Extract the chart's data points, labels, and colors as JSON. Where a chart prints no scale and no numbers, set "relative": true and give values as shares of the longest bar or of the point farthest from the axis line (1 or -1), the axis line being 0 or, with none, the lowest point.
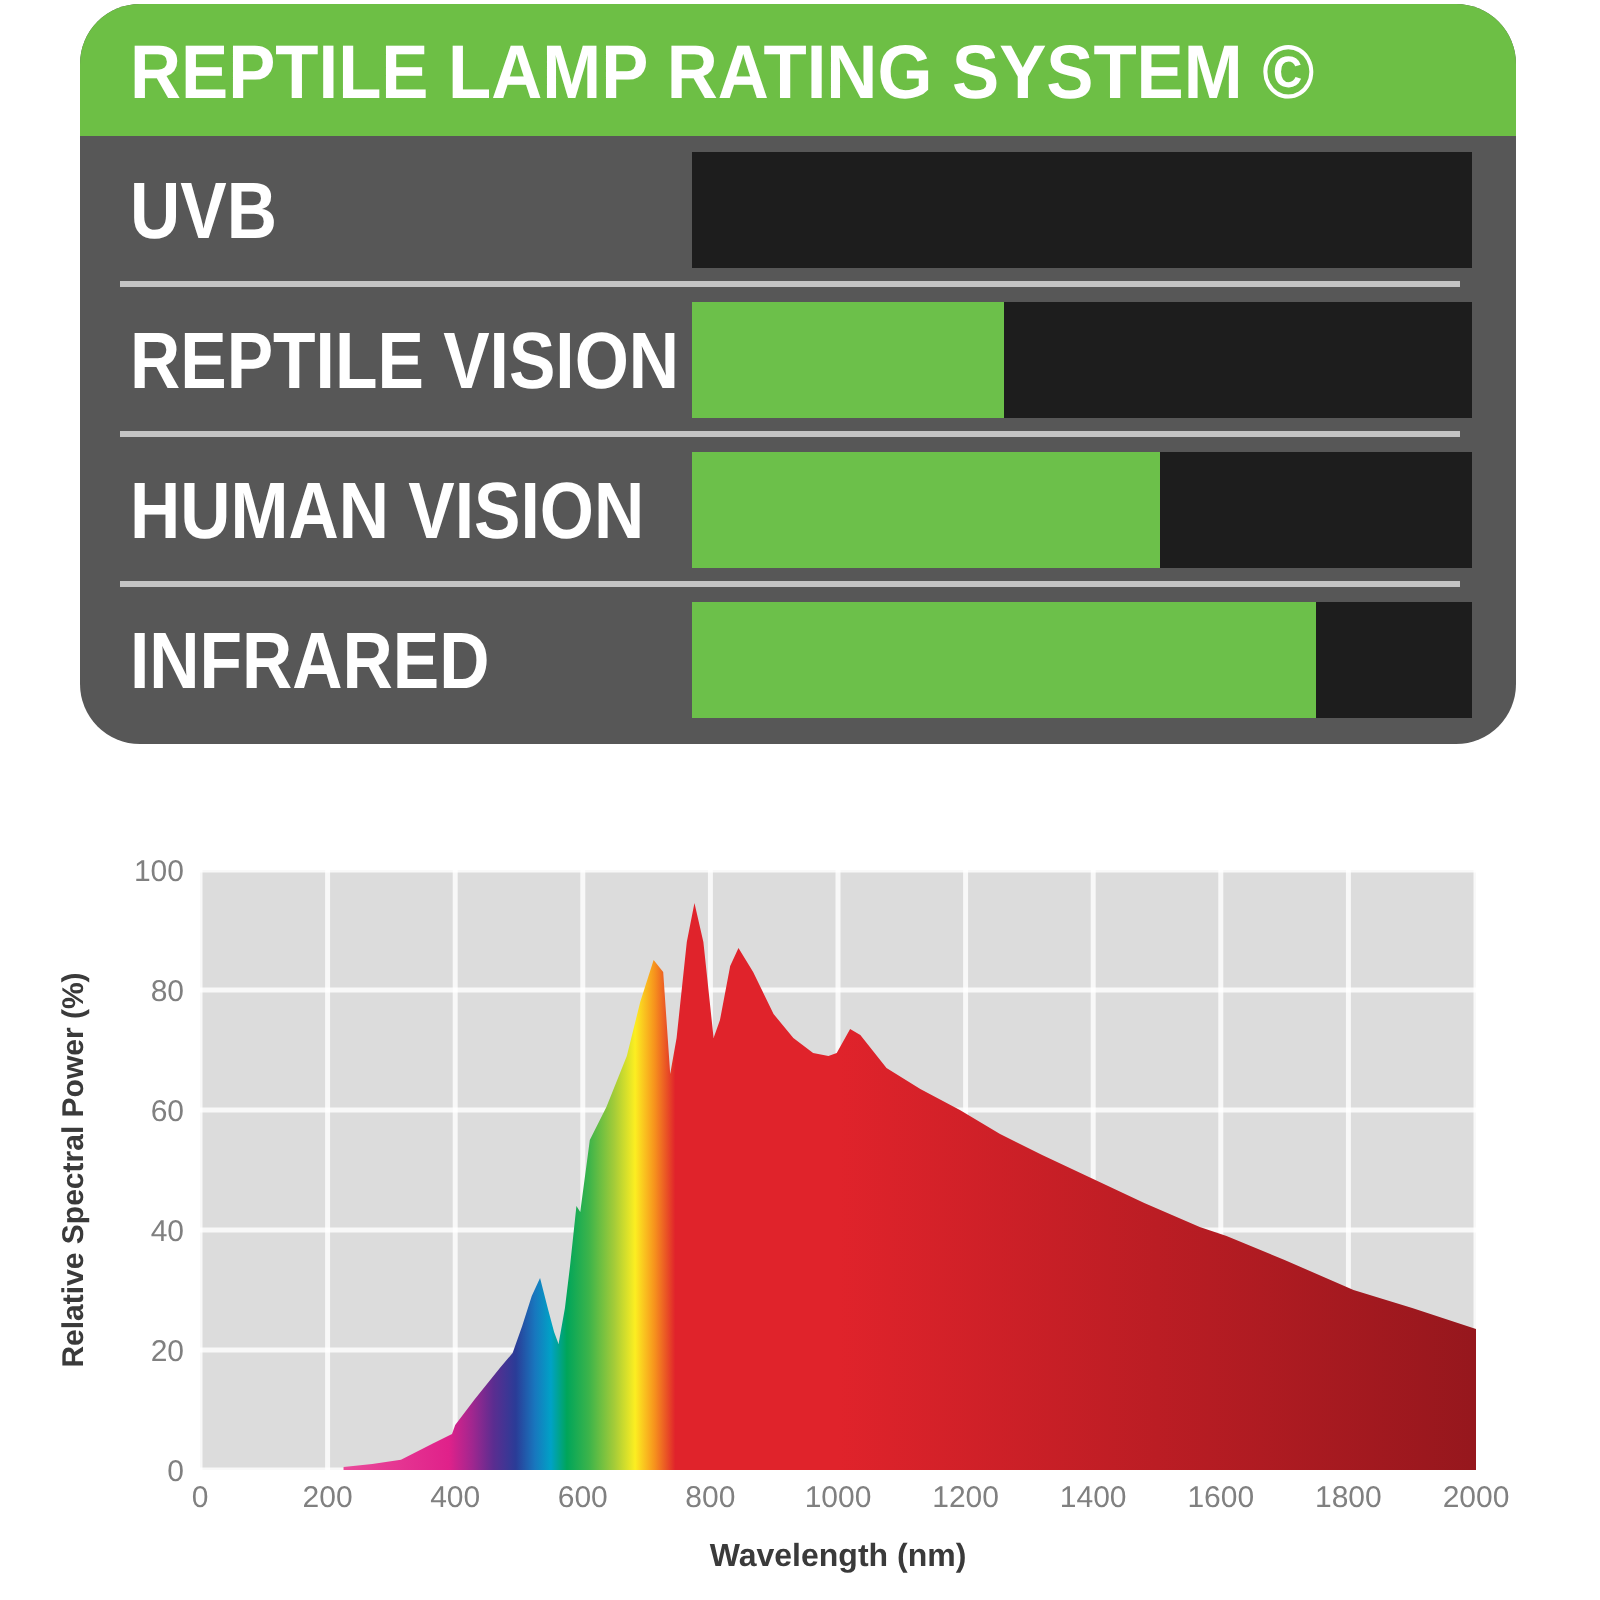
{
  "chart_data": [
    {
      "type": "bar",
      "orientation": "horizontal",
      "stacked": true,
      "relative": true,
      "title": "REPTILE LAMP RATING SYSTEM ©",
      "categories": [
        "UVB",
        "REPTILE VISION",
        "HUMAN VISION",
        "INFRARED"
      ],
      "series": [
        {
          "color": "#6cc04a",
          "values": [
            0,
            0.4,
            0.6,
            0.8
          ]
        },
        {
          "color": "#1d1d1d",
          "values": [
            1,
            0.6,
            0.4,
            0.2
          ]
        }
      ],
      "grid": "y"
    },
    {
      "type": "area",
      "xlabel": "Wavelength (nm)",
      "ylabel": "Relative Spectral Power (%)",
      "x": [
        225,
        270,
        315,
        365,
        395,
        400,
        430,
        470,
        490,
        505,
        520,
        533,
        545,
        555,
        562,
        572,
        580,
        590,
        596,
        611,
        637,
        669,
        690,
        711,
        726,
        737,
        747,
        763,
        775,
        789,
        805,
        815,
        831,
        844,
        867,
        899,
        930,
        961,
        985,
        998,
        1019,
        1035,
        1076,
        1129,
        1191,
        1254,
        1320,
        1400,
        1480,
        1567,
        1609,
        1700,
        1808,
        1900,
        2000
      ],
      "series": [
        {
          "color": "#e0232b",
          "values": [
            0.5,
            1,
            1.7,
            4.4,
            6,
            7.5,
            11.7,
            17,
            19.5,
            24,
            29,
            32,
            27,
            23,
            21,
            27,
            34,
            44,
            43,
            55,
            60.5,
            69,
            78,
            85,
            83,
            66,
            72,
            88,
            94.5,
            88,
            72,
            75,
            84,
            87,
            83,
            76,
            72,
            69.5,
            69,
            69.5,
            73.5,
            72.5,
            67,
            63.5,
            60,
            56,
            52.5,
            48.5,
            44.5,
            40.5,
            39,
            35,
            30,
            27,
            23.5
          ]
        }
      ],
      "xlim": [
        0,
        2000
      ],
      "xticks": [
        0,
        200,
        400,
        600,
        800,
        1000,
        1200,
        1400,
        1600,
        1800,
        2000
      ],
      "ylim": [
        0,
        100
      ],
      "yticks": [
        0,
        20,
        40,
        60,
        80,
        100
      ],
      "grid": true
    }
  ]
}
